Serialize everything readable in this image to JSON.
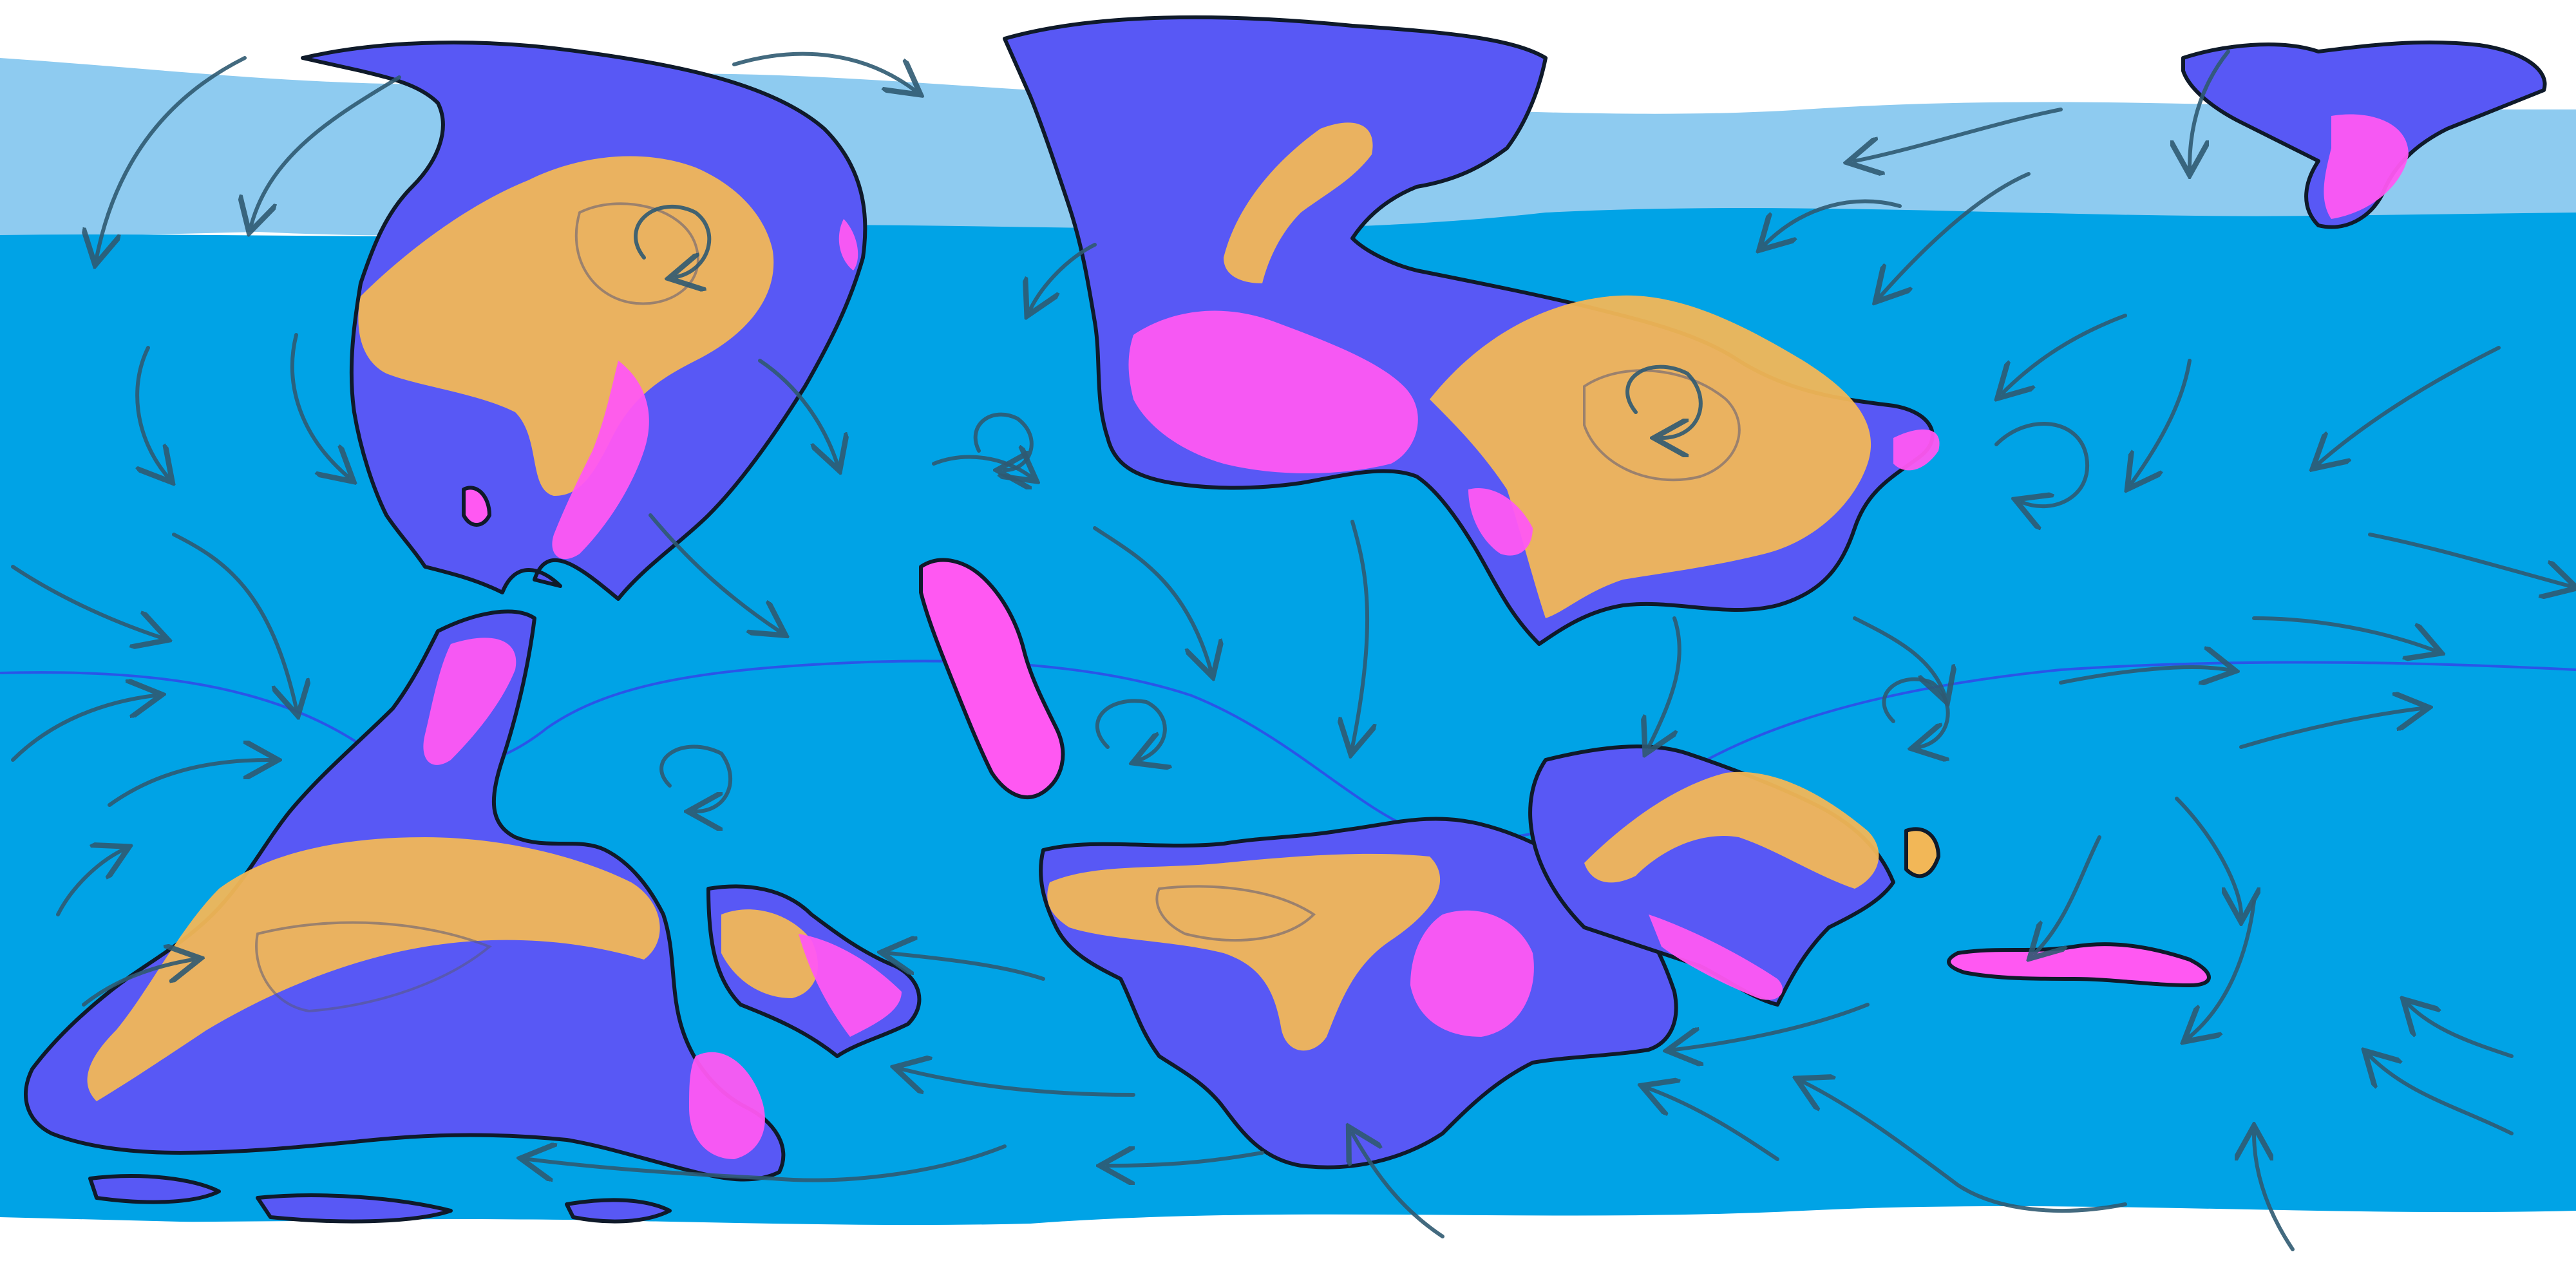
{
  "map": {
    "kind": "paleoclimate world map",
    "colors": {
      "ice": "#ffffff",
      "sea_ice": "#8ecbf0",
      "ocean": "#00a3e6",
      "land_temperate": "#5858f5",
      "land_arid": "#f2b757",
      "land_tropical_wet": "#ff58f2",
      "coastline": "#0f1a2a",
      "wind_arrows": "#2f5a72",
      "itcz": "#2a55e8",
      "contours": "#5a5a78"
    },
    "icons": [
      "wind-arrow-icon",
      "circulation-gyre-icon"
    ],
    "legend_visible": false,
    "text_visible": false
  }
}
